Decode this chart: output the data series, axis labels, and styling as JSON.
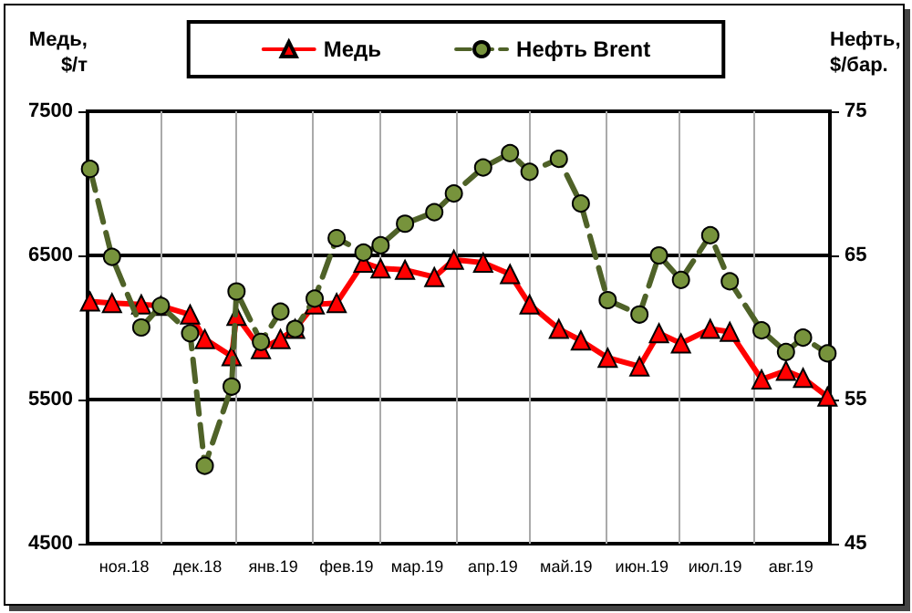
{
  "chart_data": {
    "type": "line",
    "x": [
      "2018-11-02",
      "2018-11-11",
      "2018-11-23",
      "2018-12-01",
      "2018-12-13",
      "2018-12-19",
      "2018-12-30",
      "2019-01-01",
      "2019-01-11",
      "2019-01-19",
      "2019-01-25",
      "2019-02-02",
      "2019-02-11",
      "2019-02-22",
      "2019-03-01",
      "2019-03-11",
      "2019-03-23",
      "2019-03-31",
      "2019-04-12",
      "2019-04-23",
      "2019-05-01",
      "2019-05-13",
      "2019-05-22",
      "2019-06-02",
      "2019-06-15",
      "2019-06-23",
      "2019-07-02",
      "2019-07-14",
      "2019-07-22",
      "2019-08-04",
      "2019-08-14",
      "2019-08-21",
      "2019-08-31"
    ],
    "series": [
      {
        "name": "Медь",
        "color": "#ff0000",
        "marker": "triangle",
        "line_style": "solid",
        "values": [
          6180,
          6170,
          6160,
          6150,
          6090,
          5920,
          5800,
          6080,
          5850,
          5920,
          5990,
          6160,
          6170,
          6450,
          6410,
          6400,
          6350,
          6470,
          6450,
          6370,
          6160,
          5990,
          5910,
          5790,
          5730,
          5960,
          5890,
          5990,
          5970,
          5640,
          5700,
          5650,
          5520
        ]
      },
      {
        "name": "Нефть Brent",
        "color": "#77933c",
        "marker": "circle",
        "line_style": "dashed",
        "axis": "y2",
        "values": [
          71.0,
          64.9,
          60.0,
          61.5,
          59.6,
          50.4,
          55.9,
          62.5,
          59.0,
          61.1,
          59.9,
          62.0,
          66.2,
          65.2,
          65.7,
          67.2,
          68.0,
          69.3,
          71.1,
          72.1,
          70.8,
          71.7,
          68.6,
          61.9,
          60.9,
          65.0,
          63.3,
          66.4,
          63.2,
          59.8,
          58.3,
          59.3,
          58.2
        ]
      }
    ],
    "ylabel": "Медь,\n$/т",
    "y2label": "Нефть,\n$/бар.",
    "xlim": [
      "2018-11-01",
      "2019-09-01"
    ],
    "xticks": [
      {
        "value": "2018-11-16",
        "label": "ноя.18"
      },
      {
        "value": "2018-12-01",
        "label": null
      },
      {
        "value": "2018-12-16",
        "label": "дек.18"
      },
      {
        "value": "2019-01-01",
        "label": null
      },
      {
        "value": "2019-01-16",
        "label": "янв.19"
      },
      {
        "value": "2019-02-01",
        "label": null
      },
      {
        "value": "2019-02-15",
        "label": "фев.19"
      },
      {
        "value": "2019-03-01",
        "label": null
      },
      {
        "value": "2019-03-16",
        "label": "мар.19"
      },
      {
        "value": "2019-04-01",
        "label": null
      },
      {
        "value": "2019-04-16",
        "label": "апр.19"
      },
      {
        "value": "2019-05-01",
        "label": null
      },
      {
        "value": "2019-05-16",
        "label": "май.19"
      },
      {
        "value": "2019-06-01",
        "label": null
      },
      {
        "value": "2019-06-16",
        "label": "июн.19"
      },
      {
        "value": "2019-07-01",
        "label": null
      },
      {
        "value": "2019-07-16",
        "label": "июл.19"
      },
      {
        "value": "2019-08-01",
        "label": null
      },
      {
        "value": "2019-08-16",
        "label": "авг.19"
      }
    ],
    "ylim": [
      4500,
      7500
    ],
    "yticks": [
      4500,
      5500,
      6500,
      7500
    ],
    "y2lim": [
      45,
      75
    ],
    "y2ticks": [
      45,
      55,
      65,
      75
    ],
    "grid": true,
    "legend": "top"
  }
}
